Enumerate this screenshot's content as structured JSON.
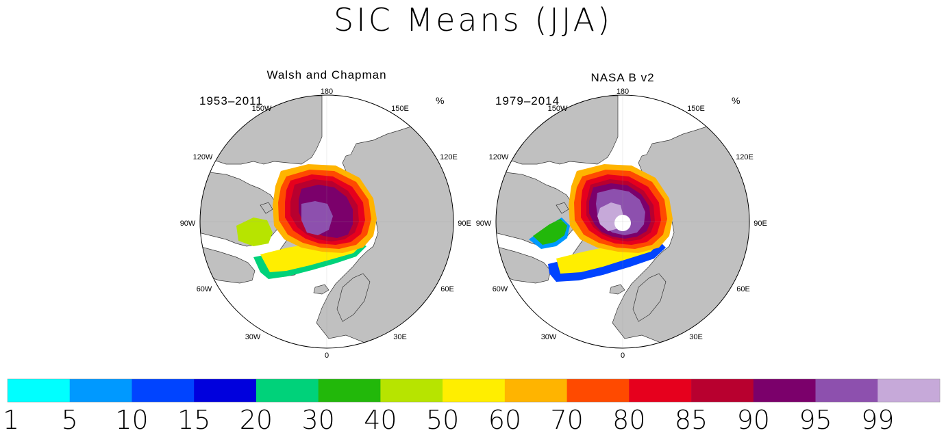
{
  "title": "SIC Means (JJA)",
  "maps": [
    {
      "subtitle": "Walsh and Chapman",
      "period": "1953–2011",
      "unit": "%",
      "lon_labels": [
        "180",
        "150W",
        "150E",
        "120W",
        "120E",
        "90W",
        "90E",
        "60W",
        "60E",
        "30W",
        "30E",
        "0"
      ]
    },
    {
      "subtitle": "NASA B v2",
      "period": "1979–2014",
      "unit": "%",
      "lon_labels": [
        "180",
        "150W",
        "150E",
        "120W",
        "120E",
        "90W",
        "90E",
        "60W",
        "60E",
        "30W",
        "30E",
        "0"
      ]
    }
  ],
  "colorbar": {
    "labels": [
      "1",
      "5",
      "10",
      "15",
      "20",
      "30",
      "40",
      "50",
      "60",
      "70",
      "80",
      "85",
      "90",
      "95",
      "99"
    ],
    "colors": [
      "#00ffff",
      "#0099ff",
      "#0044ff",
      "#0000dd",
      "#00d27a",
      "#22b80a",
      "#b7e400",
      "#ffee00",
      "#ffb400",
      "#ff4a00",
      "#e6001d",
      "#b8002f",
      "#7b006b",
      "#8d50ae",
      "#c6a9d9"
    ]
  },
  "land_color": "#c0c0c0",
  "ocean_color": "#ffffff"
}
